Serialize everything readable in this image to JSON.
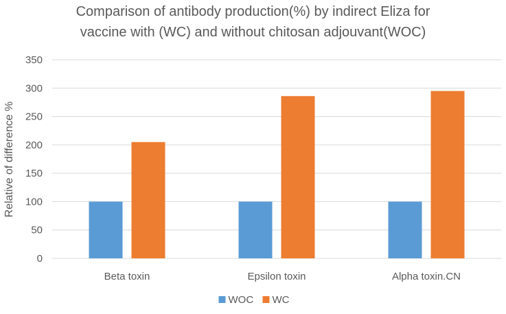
{
  "chart_data": {
    "type": "bar",
    "title_lines": [
      "Comparison of antibody production(%) by indirect Eliza for",
      "vaccine with (WC) and without chitosan adjouvant(WOC)"
    ],
    "xlabel": "",
    "ylabel": "Relative of difference %",
    "categories": [
      "Beta toxin",
      "Epsilon toxin",
      "Alpha toxin.CN"
    ],
    "series": [
      {
        "name": "WOC",
        "color": "#5B9BD5",
        "values": [
          100,
          100,
          100
        ]
      },
      {
        "name": "WC",
        "color": "#ED7D31",
        "values": [
          205,
          286,
          295
        ]
      }
    ],
    "ylim": [
      0,
      350
    ],
    "yticks": [
      0,
      50,
      100,
      150,
      200,
      250,
      300,
      350
    ],
    "grid": true,
    "legend_position": "bottom"
  }
}
